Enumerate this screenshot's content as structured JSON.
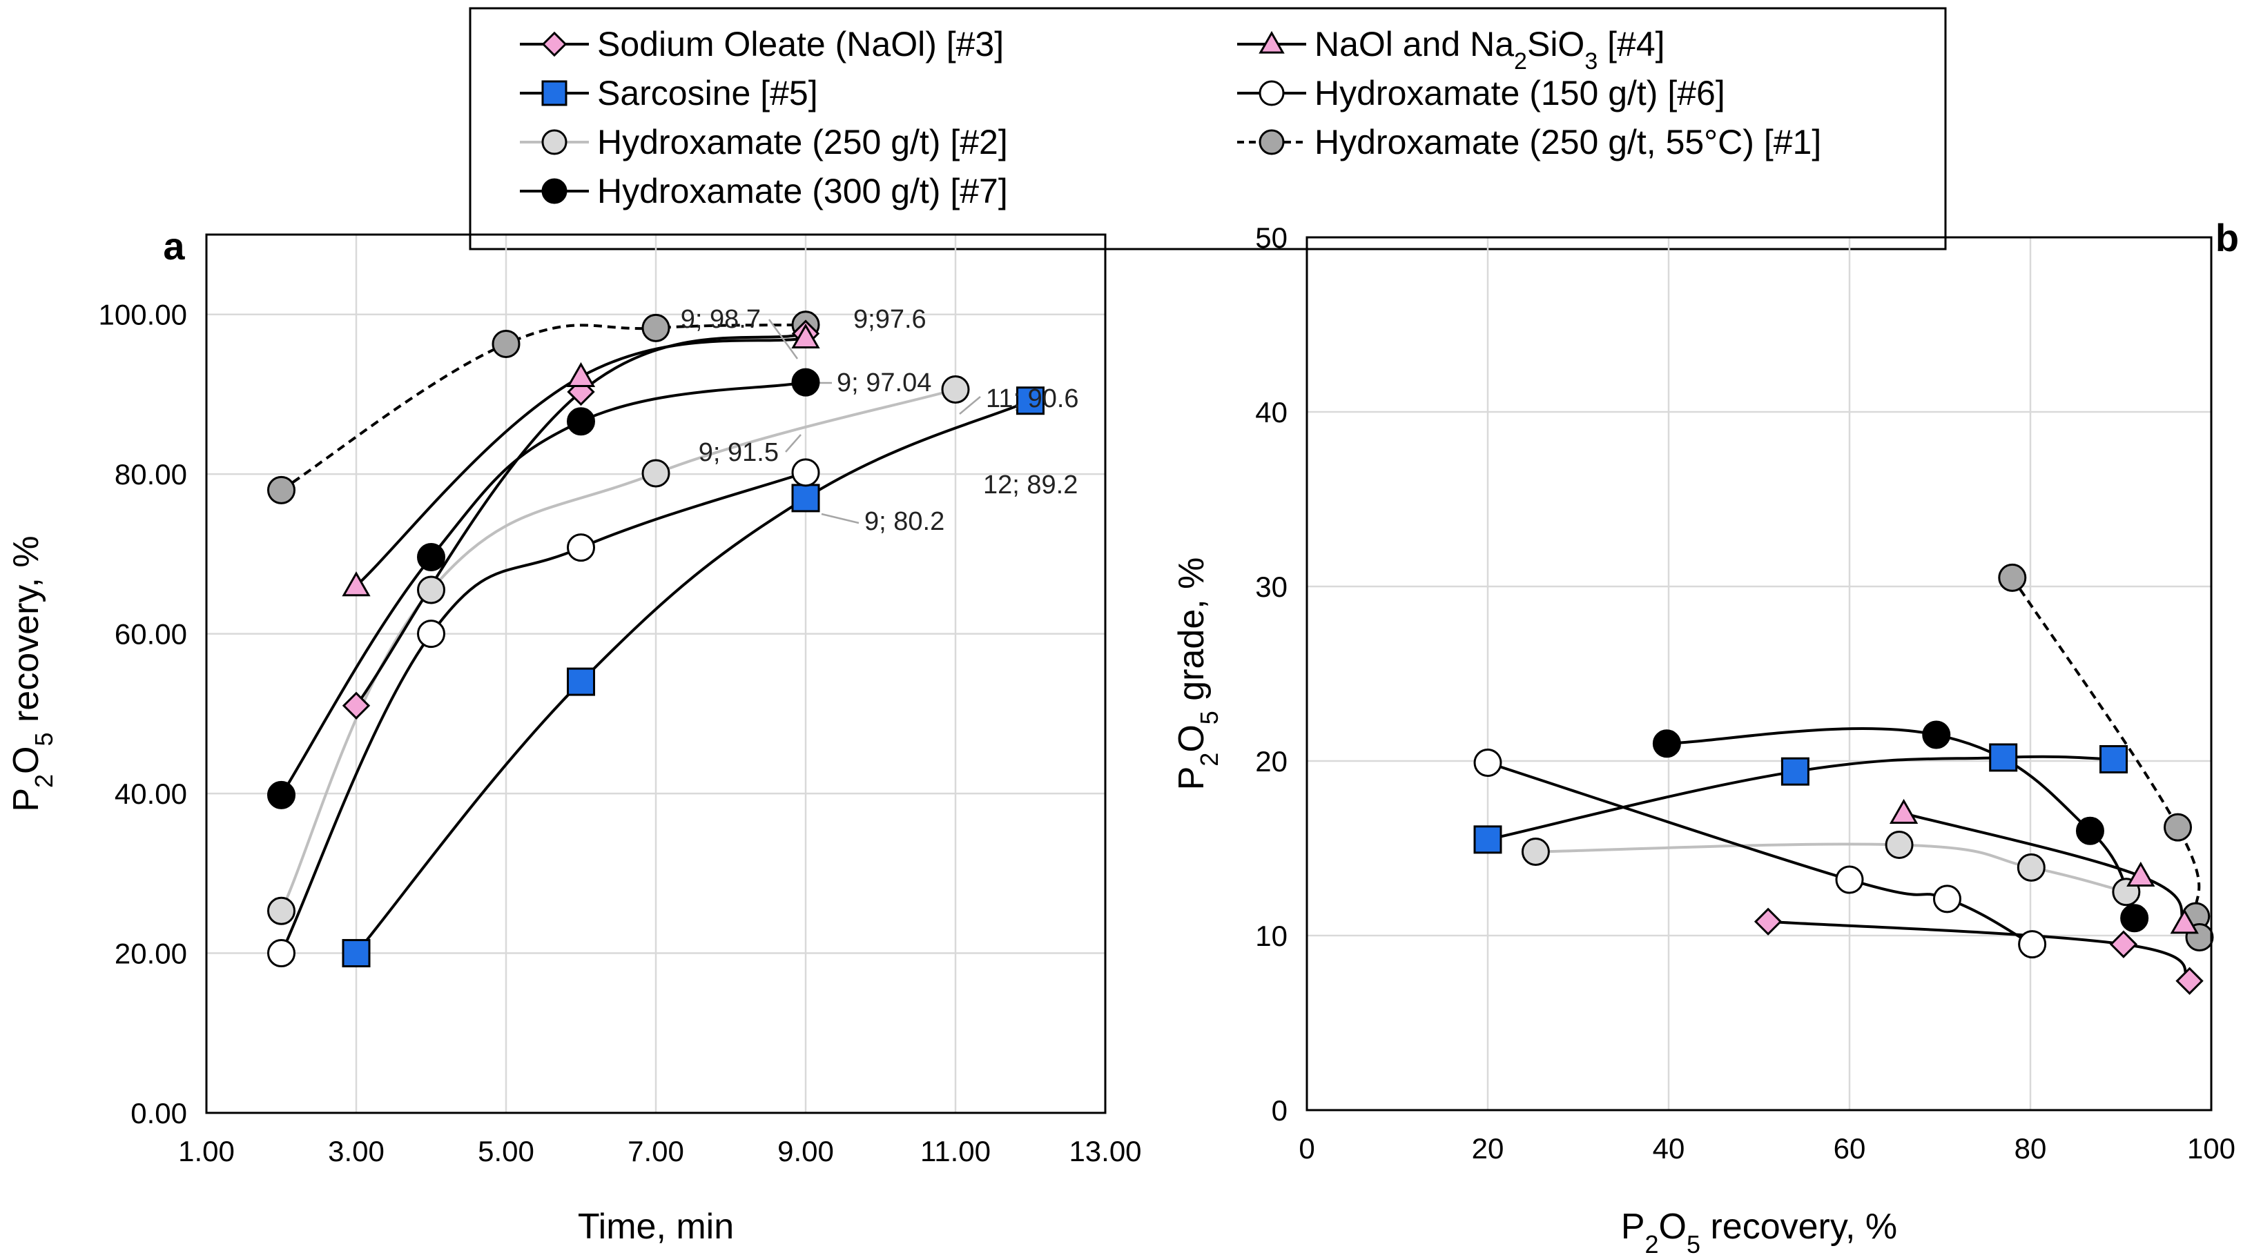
{
  "legend": {
    "items": [
      {
        "key": "s3",
        "label": "Sodium Oleate (NaOl) [#3]"
      },
      {
        "key": "s4",
        "label_pre": "NaOl and Na",
        "sub1": "2",
        "label_mid": "SiO",
        "sub2": "3",
        "label_post": " [#4]"
      },
      {
        "key": "s5",
        "label": "Sarcosine [#5]"
      },
      {
        "key": "s6",
        "label": "Hydroxamate (150 g/t) [#6]"
      },
      {
        "key": "s2",
        "label": "Hydroxamate (250 g/t) [#2]"
      },
      {
        "key": "s1",
        "label": "Hydroxamate (250 g/t, 55°C) [#1]"
      },
      {
        "key": "s7",
        "label": "Hydroxamate (300 g/t) [#7]"
      }
    ]
  },
  "series_styles": {
    "s1": {
      "marker": "circle",
      "fill": "#a6a6a6",
      "line": "#000000",
      "dash": true
    },
    "s2": {
      "marker": "circle",
      "fill": "#d9d9d9",
      "line": "#bfbfbf",
      "dash": false
    },
    "s3": {
      "marker": "diamond",
      "fill": "#f4a6d7",
      "line": "#000000",
      "dash": false
    },
    "s4": {
      "marker": "triangle",
      "fill": "#f4a6d7",
      "line": "#000000",
      "dash": false
    },
    "s5": {
      "marker": "square",
      "fill": "#1f6fe5",
      "line": "#000000",
      "dash": false
    },
    "s6": {
      "marker": "circle",
      "fill": "#ffffff",
      "line": "#000000",
      "dash": false
    },
    "s7": {
      "marker": "circle",
      "fill": "#000000",
      "line": "#000000",
      "dash": false
    }
  },
  "panels": {
    "a": {
      "letter": "a"
    },
    "b": {
      "letter": "b"
    }
  },
  "chart_data": [
    {
      "id": "a",
      "type": "line",
      "xlabel": "Time, min",
      "ylabel_parts": [
        "P",
        "2",
        "O",
        "5",
        " recovery, %"
      ],
      "xlim": [
        1,
        13
      ],
      "ylim": [
        0,
        110
      ],
      "xticks": [
        1,
        3,
        5,
        7,
        9,
        11,
        13
      ],
      "yticks": [
        0,
        20,
        40,
        60,
        80,
        100
      ],
      "xtick_labels": [
        "1.00",
        "3.00",
        "5.00",
        "7.00",
        "9.00",
        "11.00",
        "13.00"
      ],
      "ytick_labels": [
        "0.00",
        "20.00",
        "40.00",
        "60.00",
        "80.00",
        "100.00"
      ],
      "grid": true,
      "series": [
        {
          "key": "s1",
          "name": "Hydroxamate (250 g/t, 55°C) [#1]",
          "x": [
            2,
            5,
            7,
            9
          ],
          "y": [
            78,
            96.3,
            98.3,
            98.7
          ]
        },
        {
          "key": "s2",
          "name": "Hydroxamate (250 g/t) [#2]",
          "x": [
            2,
            4,
            7,
            11
          ],
          "y": [
            25.3,
            65.5,
            80.1,
            90.6
          ]
        },
        {
          "key": "s3",
          "name": "Sodium Oleate (NaOl) [#3]",
          "x": [
            3,
            6,
            9
          ],
          "y": [
            51,
            90.3,
            97.6
          ]
        },
        {
          "key": "s4",
          "name": "NaOl and Na2SiO3 [#4]",
          "x": [
            3,
            6,
            9
          ],
          "y": [
            66,
            92.2,
            97.04
          ]
        },
        {
          "key": "s5",
          "name": "Sarcosine [#5]",
          "x": [
            3,
            6,
            9,
            12
          ],
          "y": [
            20,
            54,
            77,
            89.2
          ]
        },
        {
          "key": "s6",
          "name": "Hydroxamate (150 g/t) [#6]",
          "x": [
            2,
            4,
            6,
            9
          ],
          "y": [
            20,
            60,
            70.8,
            80.2
          ]
        },
        {
          "key": "s7",
          "name": "Hydroxamate (300 g/t) [#7]",
          "x": [
            2,
            4,
            6,
            9
          ],
          "y": [
            39.8,
            69.6,
            86.6,
            91.5
          ]
        }
      ],
      "annotations": [
        {
          "text": "9; 98.7",
          "x": 9,
          "y": 98.7
        },
        {
          "text": "9;97.6",
          "x": 9,
          "y": 97.6
        },
        {
          "text": "9; 97.04",
          "x": 9,
          "y": 97.04
        },
        {
          "text": "11; 90.6",
          "x": 11,
          "y": 90.6
        },
        {
          "text": "9; 91.5",
          "x": 9,
          "y": 91.5
        },
        {
          "text": "12; 89.2",
          "x": 12,
          "y": 89.2
        },
        {
          "text": "9; 80.2",
          "x": 9,
          "y": 80.2
        }
      ]
    },
    {
      "id": "b",
      "type": "line",
      "xlabel_parts": [
        "P",
        "2",
        "O",
        "5",
        " recovery, %"
      ],
      "ylabel_parts": [
        "P",
        "2",
        "O",
        "5",
        " grade, %"
      ],
      "xlim": [
        0,
        100
      ],
      "ylim": [
        0,
        50
      ],
      "xticks": [
        0,
        20,
        40,
        60,
        80,
        100
      ],
      "yticks": [
        0,
        10,
        20,
        30,
        40,
        50
      ],
      "xtick_labels": [
        "0",
        "20",
        "40",
        "60",
        "80",
        "100"
      ],
      "ytick_labels": [
        "0",
        "10",
        "20",
        "30",
        "40",
        "50"
      ],
      "grid": true,
      "series": [
        {
          "key": "s1",
          "name": "Hydroxamate (250 g/t, 55°C) [#1]",
          "x": [
            78,
            96.3,
            98.3,
            98.7
          ],
          "y": [
            30.5,
            16.2,
            11.1,
            9.9
          ]
        },
        {
          "key": "s2",
          "name": "Hydroxamate (250 g/t) [#2]",
          "x": [
            25.3,
            65.5,
            80.1,
            90.6
          ],
          "y": [
            14.8,
            15.2,
            13.9,
            12.5
          ]
        },
        {
          "key": "s3",
          "name": "Sodium Oleate (NaOl) [#3]",
          "x": [
            51,
            90.3,
            97.6
          ],
          "y": [
            10.8,
            9.5,
            7.4
          ]
        },
        {
          "key": "s4",
          "name": "NaOl and Na2SiO3 [#4]",
          "x": [
            66,
            92.2,
            97.04
          ],
          "y": [
            17,
            13.4,
            10.7
          ]
        },
        {
          "key": "s5",
          "name": "Sarcosine [#5]",
          "x": [
            20,
            54,
            77,
            89.2
          ],
          "y": [
            15.5,
            19.4,
            20.2,
            20.1
          ]
        },
        {
          "key": "s6",
          "name": "Hydroxamate (150 g/t) [#6]",
          "x": [
            20,
            60,
            70.8,
            80.2
          ],
          "y": [
            19.9,
            13.2,
            12.1,
            9.5
          ]
        },
        {
          "key": "s7",
          "name": "Hydroxamate (300 g/t) [#7]",
          "x": [
            39.8,
            69.6,
            86.6,
            91.5
          ],
          "y": [
            21,
            21.5,
            16,
            11
          ]
        }
      ]
    }
  ]
}
